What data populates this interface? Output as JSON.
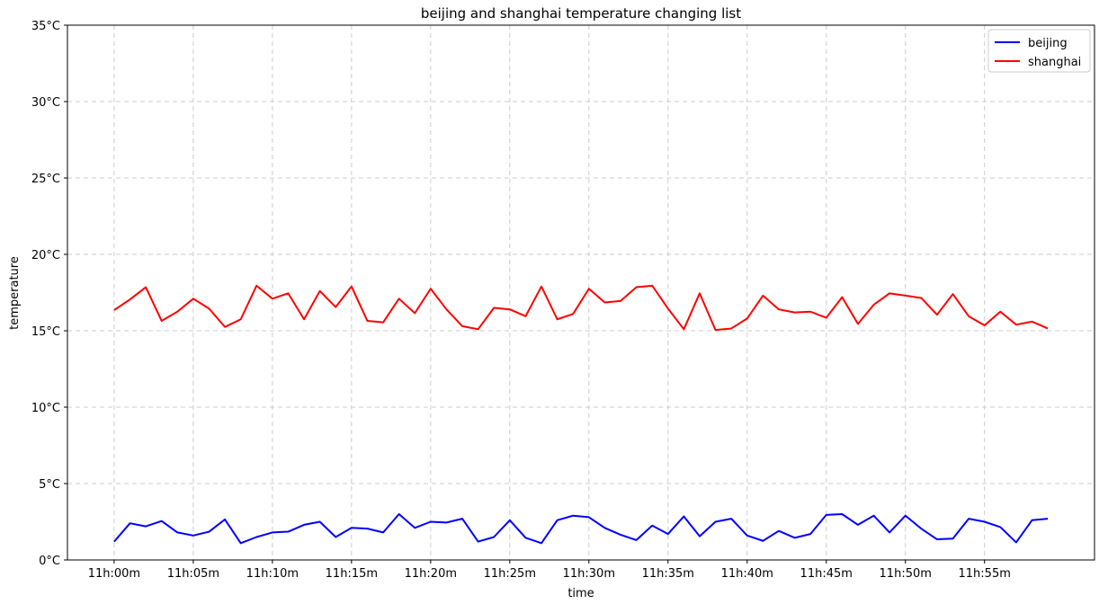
{
  "chart_data": {
    "type": "line",
    "title": "beijing and shanghai temperature changing list",
    "xlabel": "time",
    "ylabel": "temperature",
    "grid": true,
    "legend_position": "top-right",
    "x_minutes": [
      0,
      1,
      2,
      3,
      4,
      5,
      6,
      7,
      8,
      9,
      10,
      11,
      12,
      13,
      14,
      15,
      16,
      17,
      18,
      19,
      20,
      21,
      22,
      23,
      24,
      25,
      26,
      27,
      28,
      29,
      30,
      31,
      32,
      33,
      34,
      35,
      36,
      37,
      38,
      39,
      40,
      41,
      42,
      43,
      44,
      45,
      46,
      47,
      48,
      49,
      50,
      51,
      52,
      53,
      54,
      55,
      56,
      57,
      58,
      59
    ],
    "xlim": [
      -2.95,
      61.95
    ],
    "ylim": [
      0,
      35
    ],
    "x_ticks": [
      {
        "value": 0,
        "label": "11h:00m"
      },
      {
        "value": 5,
        "label": "11h:05m"
      },
      {
        "value": 10,
        "label": "11h:10m"
      },
      {
        "value": 15,
        "label": "11h:15m"
      },
      {
        "value": 20,
        "label": "11h:20m"
      },
      {
        "value": 25,
        "label": "11h:25m"
      },
      {
        "value": 30,
        "label": "11h:30m"
      },
      {
        "value": 35,
        "label": "11h:35m"
      },
      {
        "value": 40,
        "label": "11h:40m"
      },
      {
        "value": 45,
        "label": "11h:45m"
      },
      {
        "value": 50,
        "label": "11h:50m"
      },
      {
        "value": 55,
        "label": "11h:55m"
      }
    ],
    "y_ticks": [
      {
        "value": 0,
        "label": "0°C"
      },
      {
        "value": 5,
        "label": "5°C"
      },
      {
        "value": 10,
        "label": "10°C"
      },
      {
        "value": 15,
        "label": "15°C"
      },
      {
        "value": 20,
        "label": "20°C"
      },
      {
        "value": 25,
        "label": "25°C"
      },
      {
        "value": 30,
        "label": "30°C"
      },
      {
        "value": 35,
        "label": "35°C"
      }
    ],
    "series": [
      {
        "name": "beijing",
        "color": "#0000ff",
        "values": [
          1.2,
          2.4,
          2.2,
          2.55,
          1.8,
          1.6,
          1.85,
          2.65,
          1.1,
          1.5,
          1.8,
          1.85,
          2.3,
          2.5,
          1.5,
          2.1,
          2.05,
          1.8,
          3.0,
          2.1,
          2.5,
          2.45,
          2.7,
          1.2,
          1.5,
          2.6,
          1.45,
          1.1,
          2.6,
          2.9,
          2.8,
          2.1,
          1.65,
          1.3,
          2.25,
          1.7,
          2.85,
          1.55,
          2.5,
          2.7,
          1.6,
          1.25,
          1.9,
          1.45,
          1.7,
          2.95,
          3.0,
          2.3,
          2.9,
          1.8,
          2.9,
          2.05,
          1.35,
          1.4,
          2.7,
          2.5,
          2.15,
          1.15,
          2.6,
          2.7
        ]
      },
      {
        "name": "shanghai",
        "color": "#ff0000",
        "values": [
          16.35,
          17.05,
          17.85,
          15.65,
          16.25,
          17.1,
          16.45,
          15.25,
          15.75,
          17.95,
          17.1,
          17.45,
          15.75,
          17.6,
          16.55,
          17.9,
          15.65,
          15.55,
          17.1,
          16.15,
          17.75,
          16.4,
          15.3,
          15.1,
          16.5,
          16.4,
          15.95,
          17.9,
          15.75,
          16.1,
          17.75,
          16.85,
          16.95,
          17.85,
          17.95,
          16.45,
          15.1,
          17.45,
          15.05,
          15.15,
          15.8,
          17.3,
          16.4,
          16.2,
          16.25,
          15.85,
          17.2,
          15.45,
          16.7,
          17.45,
          17.3,
          17.15,
          16.05,
          17.4,
          15.95,
          15.35,
          16.25,
          15.4,
          15.6,
          15.15
        ]
      }
    ]
  }
}
